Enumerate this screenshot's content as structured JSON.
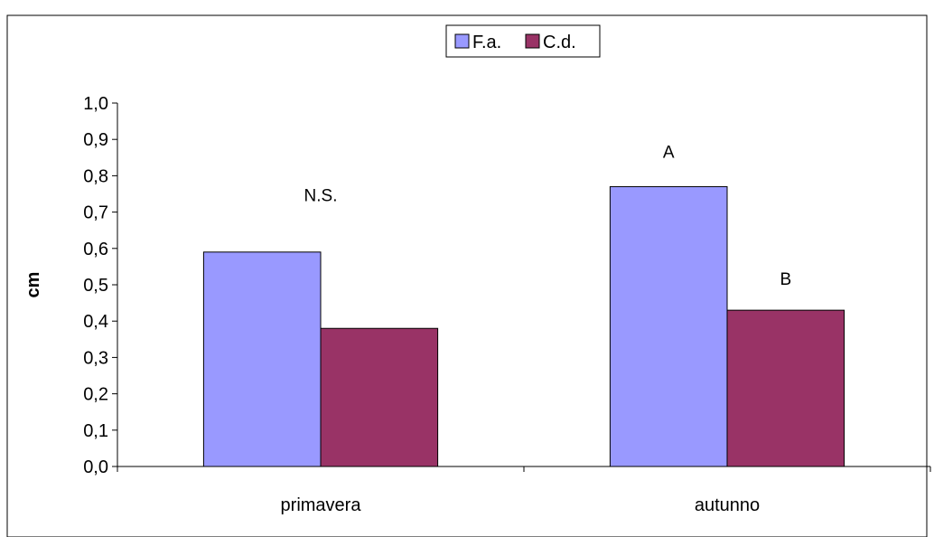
{
  "chart_data": {
    "type": "bar",
    "categories": [
      "primavera",
      "autunno"
    ],
    "series": [
      {
        "name": "F.a.",
        "color": "#9999ff",
        "values": [
          0.59,
          0.77
        ]
      },
      {
        "name": "C.d.",
        "color": "#993366",
        "values": [
          0.38,
          0.43
        ]
      }
    ],
    "ylabel": "cm",
    "xlabel": "",
    "ylim": [
      0,
      1.0
    ],
    "yticks": [
      "0,0",
      "0,1",
      "0,2",
      "0,3",
      "0,4",
      "0,5",
      "0,6",
      "0,7",
      "0,8",
      "0,9",
      "1,0"
    ],
    "annotations": [
      {
        "text": "N.S.",
        "category": 0,
        "series": null,
        "y": 0.73
      },
      {
        "text": "A",
        "category": 1,
        "series": 0,
        "y": 0.85
      },
      {
        "text": "B",
        "category": 1,
        "series": 1,
        "y": 0.5
      }
    ],
    "legend": "top-center",
    "grid": false
  }
}
